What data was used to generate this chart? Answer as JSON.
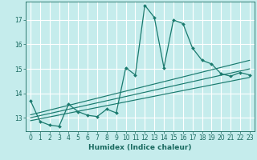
{
  "xlabel": "Humidex (Indice chaleur)",
  "background_color": "#c5ecec",
  "grid_color": "#ffffff",
  "line_color": "#1a7a6e",
  "xlim": [
    -0.5,
    23.5
  ],
  "ylim": [
    12.45,
    17.75
  ],
  "yticks": [
    13,
    14,
    15,
    16,
    17
  ],
  "xticks": [
    0,
    1,
    2,
    3,
    4,
    5,
    6,
    7,
    8,
    9,
    10,
    11,
    12,
    13,
    14,
    15,
    16,
    17,
    18,
    19,
    20,
    21,
    22,
    23
  ],
  "main_x": [
    0,
    1,
    2,
    3,
    4,
    5,
    6,
    7,
    8,
    9,
    10,
    11,
    12,
    13,
    14,
    15,
    16,
    17,
    18,
    19,
    20,
    21,
    22,
    23
  ],
  "main_y": [
    13.7,
    12.85,
    12.7,
    12.65,
    13.55,
    13.25,
    13.1,
    13.05,
    13.35,
    13.2,
    15.05,
    14.75,
    17.6,
    17.1,
    15.05,
    17.0,
    16.85,
    15.85,
    15.35,
    15.2,
    14.8,
    14.7,
    14.85,
    14.75
  ],
  "line1_x": [
    0,
    23
  ],
  "line1_y": [
    12.88,
    14.65
  ],
  "line2_x": [
    0,
    23
  ],
  "line2_y": [
    13.0,
    15.0
  ],
  "line3_x": [
    0,
    23
  ],
  "line3_y": [
    13.12,
    15.35
  ]
}
